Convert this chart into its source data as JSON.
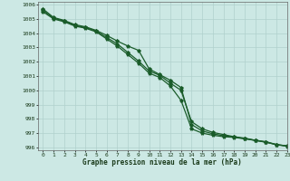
{
  "title": "Graphe pression niveau de la mer (hPa)",
  "background_color": "#cce8e4",
  "grid_color": "#b0d0cc",
  "line_color": "#1a5c2a",
  "xlim": [
    -0.5,
    23
  ],
  "ylim": [
    995.8,
    1006.2
  ],
  "xticks": [
    0,
    1,
    2,
    3,
    4,
    5,
    6,
    7,
    8,
    9,
    10,
    11,
    12,
    13,
    14,
    15,
    16,
    17,
    18,
    19,
    20,
    21,
    22,
    23
  ],
  "yticks": [
    996,
    997,
    998,
    999,
    1000,
    1001,
    1002,
    1003,
    1004,
    1005,
    1006
  ],
  "line1_x": [
    0,
    1,
    2,
    3,
    4,
    5,
    6,
    7,
    8,
    9,
    10,
    11,
    12,
    13,
    14,
    15,
    16,
    17,
    18,
    19,
    20,
    21,
    22,
    23
  ],
  "line1_y": [
    1005.5,
    1005.0,
    1004.8,
    1004.5,
    1004.35,
    1004.1,
    1003.6,
    1003.1,
    1002.5,
    1001.9,
    1001.2,
    1000.9,
    1000.3,
    999.3,
    997.3,
    997.0,
    996.85,
    996.75,
    996.7,
    996.6,
    996.5,
    996.35,
    996.2,
    996.1
  ],
  "line2_x": [
    0,
    1,
    2,
    3,
    4,
    5,
    6,
    7,
    8,
    9,
    10,
    11,
    12,
    13,
    14,
    15,
    16,
    17,
    18,
    19,
    20,
    21,
    22,
    23
  ],
  "line2_y": [
    1005.6,
    1005.05,
    1004.85,
    1004.55,
    1004.4,
    1004.15,
    1003.7,
    1003.25,
    1002.65,
    1002.05,
    1001.35,
    1001.05,
    1000.5,
    1000.0,
    997.8,
    997.3,
    997.05,
    996.9,
    996.75,
    996.65,
    996.5,
    996.4,
    996.2,
    996.1
  ],
  "line3_x": [
    0,
    1,
    2,
    3,
    4,
    5,
    6,
    7,
    8,
    9,
    10,
    11,
    12,
    13,
    14,
    15,
    16,
    17,
    18,
    19,
    20,
    21,
    22,
    23
  ],
  "line3_y": [
    1005.7,
    1005.1,
    1004.9,
    1004.6,
    1004.45,
    1004.2,
    1003.85,
    1003.45,
    1003.1,
    1002.8,
    1001.5,
    1001.1,
    1000.7,
    1000.2,
    997.6,
    997.15,
    996.95,
    996.82,
    996.72,
    996.62,
    996.48,
    996.38,
    996.18,
    996.08
  ],
  "xlabel_fontsize": 5.5,
  "tick_fontsize": 4.5
}
